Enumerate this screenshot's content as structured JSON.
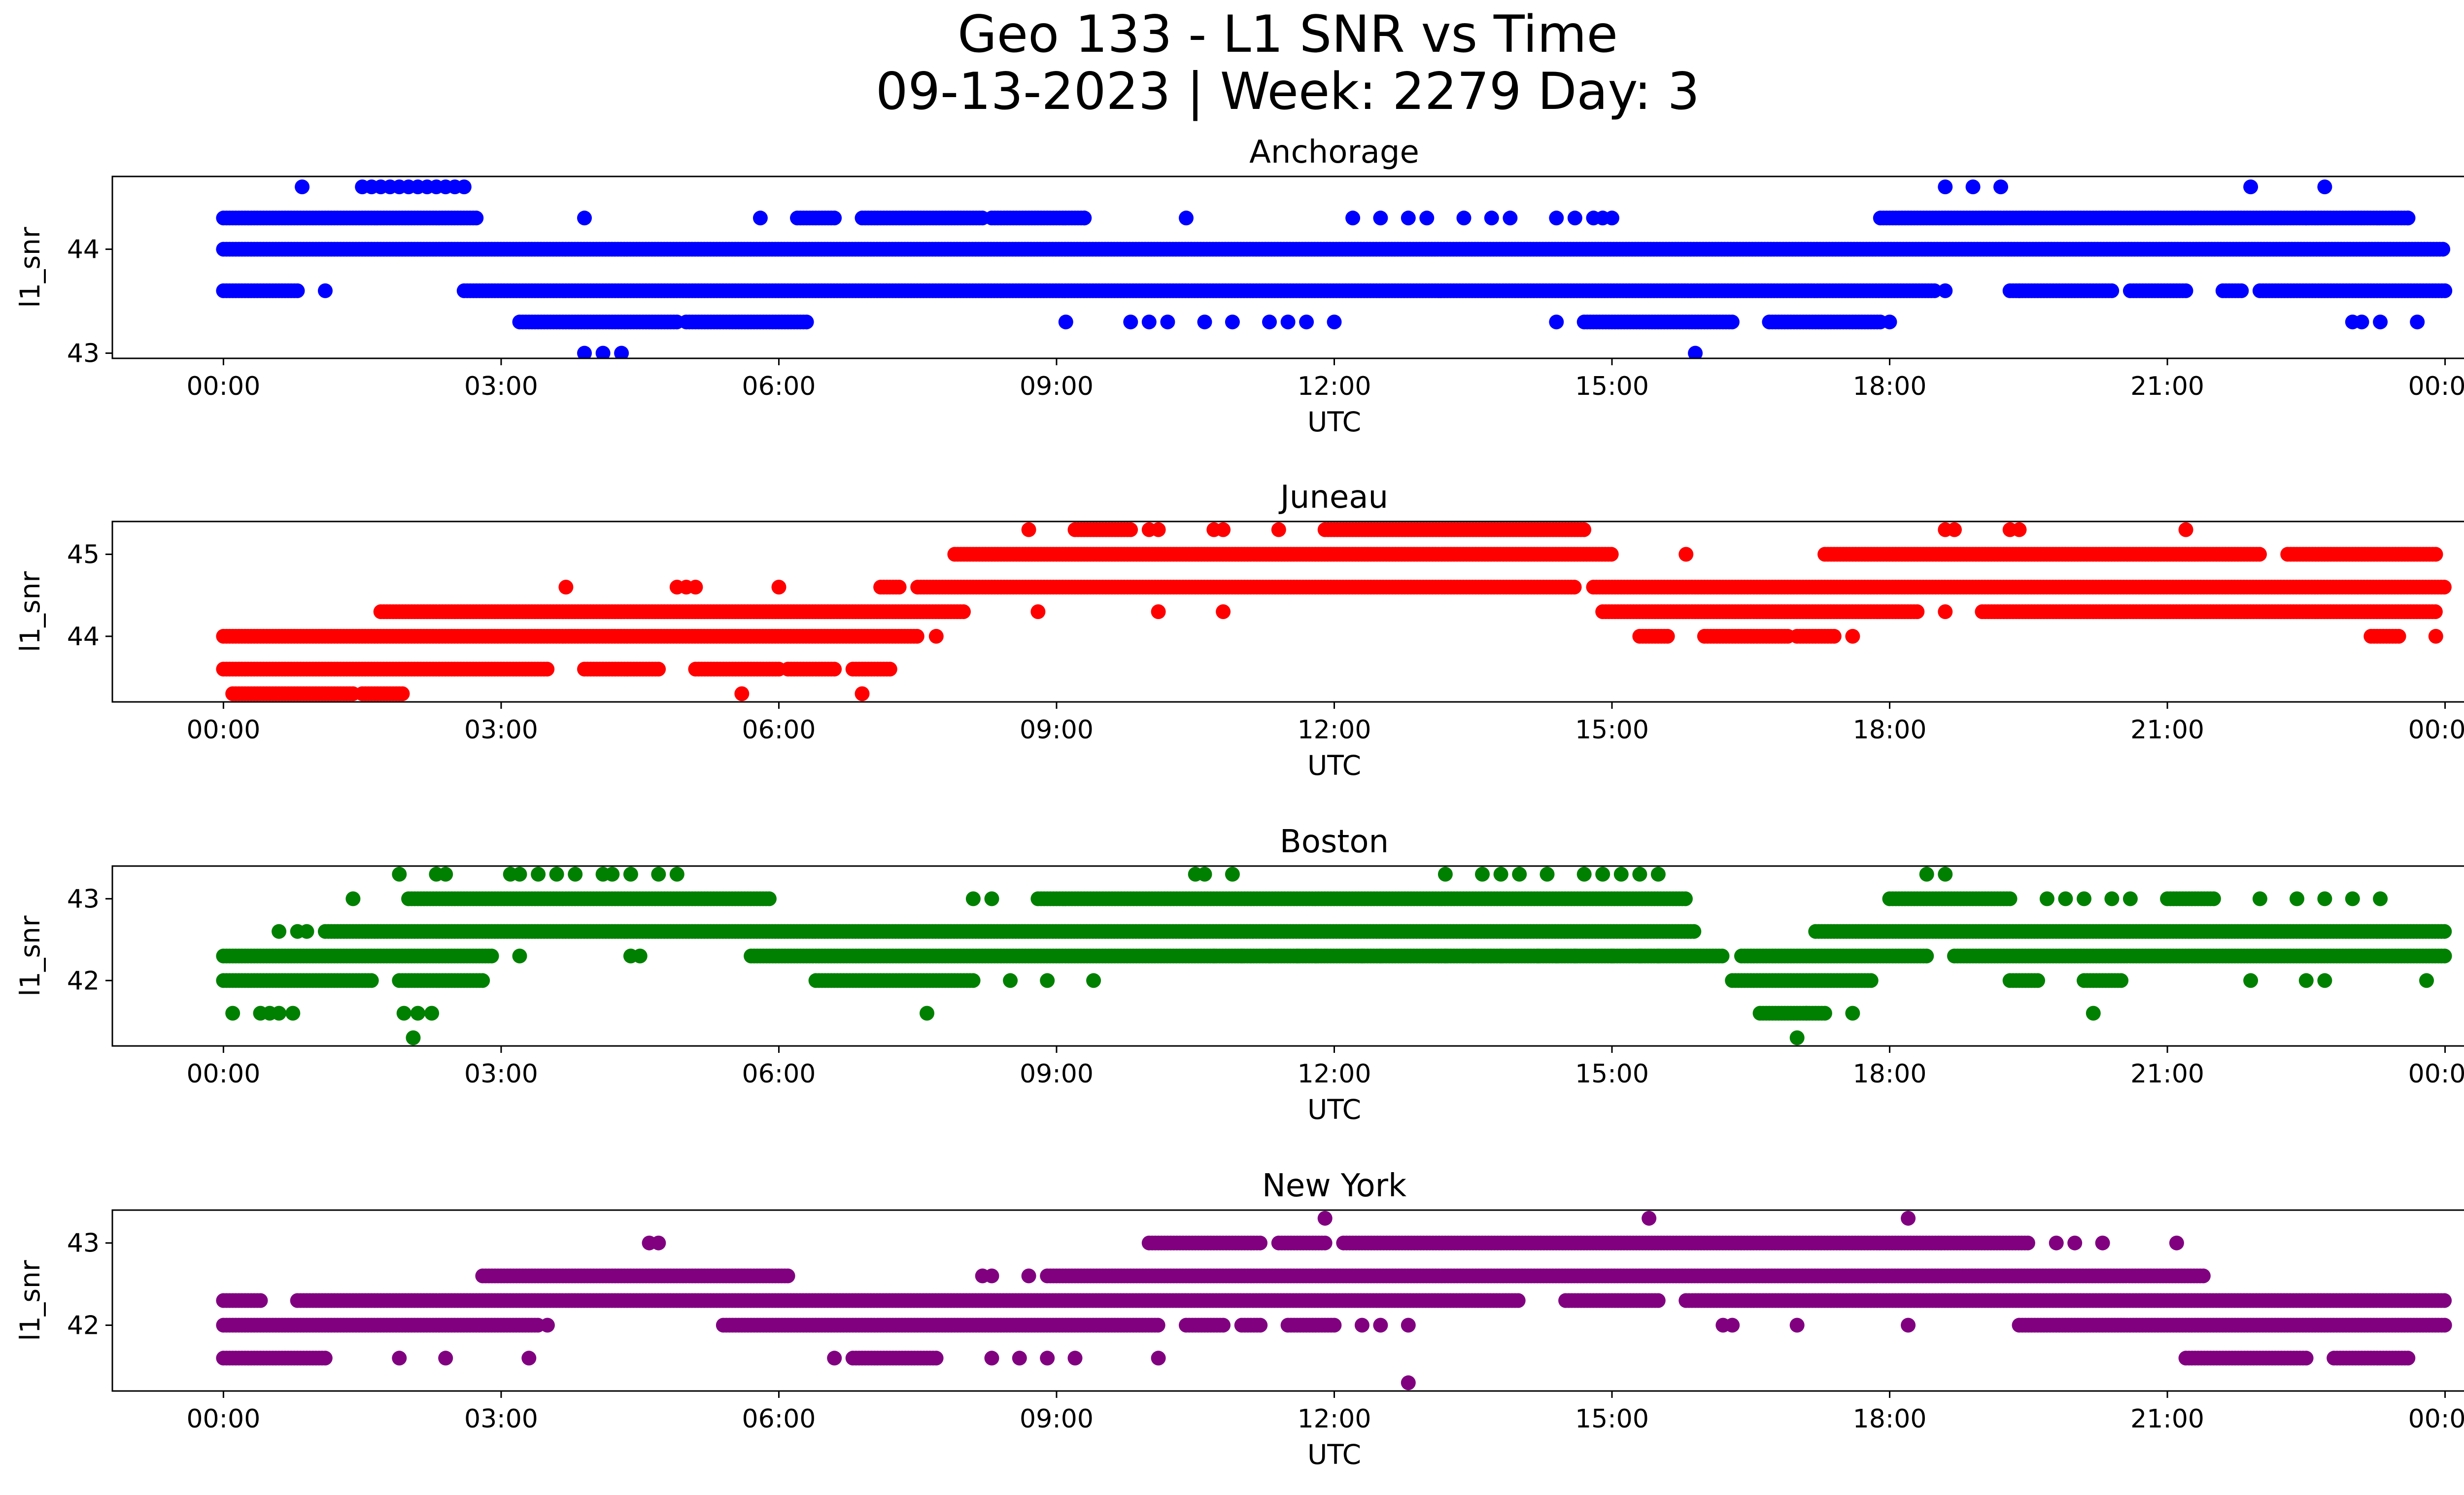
{
  "figure": {
    "title_line1": "Geo 133 - L1 SNR vs Time",
    "title_line2": "09-13-2023 | Week: 2279 Day: 3"
  },
  "chart_data": [
    {
      "type": "scatter",
      "title": "Anchorage",
      "color": "#0000ff",
      "xlabel": "UTC",
      "ylabel": "l1_snr",
      "xticks": [
        "00:00",
        "03:00",
        "06:00",
        "09:00",
        "12:00",
        "15:00",
        "18:00",
        "21:00",
        "00:00"
      ],
      "xlim_hours": [
        -1.2,
        25.2
      ],
      "yticks": [
        43,
        44
      ],
      "ylim": [
        42.95,
        44.7
      ],
      "series": [
        {
          "y": 44.0,
          "segments": [
            [
              0,
              24
            ]
          ],
          "dense": true
        },
        {
          "y": 44.3,
          "segments": [
            [
              0,
              2.75
            ],
            [
              6.2,
              6.6
            ],
            [
              6.9,
              8.2
            ],
            [
              8.3,
              9.3
            ],
            [
              17.9,
              23.6
            ]
          ],
          "dense": true
        },
        {
          "y": 44.3,
          "points": [
            3.9,
            5.8,
            9.3,
            10.4,
            12.2,
            12.5,
            12.8,
            13.0,
            13.4,
            13.7,
            13.9,
            14.4,
            14.6,
            14.8,
            14.9,
            15.0,
            22.5,
            23.6
          ]
        },
        {
          "y": 43.6,
          "segments": [
            [
              0,
              0.8
            ],
            [
              2.6,
              18.5
            ],
            [
              19.3,
              20.4
            ],
            [
              20.6,
              21.2
            ],
            [
              21.6,
              21.8
            ],
            [
              22.0,
              24.0
            ]
          ],
          "dense": true
        },
        {
          "y": 43.6,
          "points": [
            1.1,
            18.6,
            19.4
          ]
        },
        {
          "y": 44.6,
          "points": [
            0.85,
            1.5,
            1.6,
            1.7,
            1.8,
            1.9,
            2.0,
            2.1,
            2.2,
            2.3,
            2.4,
            2.5,
            2.6,
            18.6,
            18.9,
            19.2,
            21.9,
            22.7
          ]
        },
        {
          "y": 43.3,
          "segments": [
            [
              3.2,
              4.9
            ],
            [
              5.0,
              6.3
            ],
            [
              14.7,
              16.3
            ],
            [
              16.7,
              17.9
            ]
          ],
          "dense": true
        },
        {
          "y": 43.3,
          "points": [
            9.1,
            9.8,
            10.0,
            10.2,
            10.6,
            10.9,
            11.3,
            11.5,
            11.7,
            12.0,
            14.4,
            18.0,
            23.0,
            23.1,
            23.3,
            23.7
          ]
        },
        {
          "y": 43.0,
          "points": [
            3.9,
            4.1,
            4.3,
            15.9
          ]
        }
      ]
    },
    {
      "type": "scatter",
      "title": "Juneau",
      "color": "#ff0000",
      "xlabel": "UTC",
      "ylabel": "l1_snr",
      "xticks": [
        "00:00",
        "03:00",
        "06:00",
        "09:00",
        "12:00",
        "15:00",
        "18:00",
        "21:00",
        "00:00"
      ],
      "xlim_hours": [
        -1.2,
        25.2
      ],
      "yticks": [
        44,
        45
      ],
      "ylim": [
        43.2,
        45.4
      ],
      "series": [
        {
          "y": 44.0,
          "segments": [
            [
              0,
              7.5
            ],
            [
              15.3,
              15.6
            ],
            [
              16.0,
              16.9
            ],
            [
              17.0,
              17.4
            ],
            [
              23.2,
              23.5
            ]
          ],
          "dense": true
        },
        {
          "y": 44.0,
          "points": [
            7.7,
            17.6,
            23.9
          ]
        },
        {
          "y": 43.6,
          "segments": [
            [
              0,
              3.5
            ],
            [
              3.9,
              4.7
            ],
            [
              5.1,
              6.0
            ],
            [
              6.1,
              6.6
            ],
            [
              6.8,
              7.2
            ]
          ],
          "dense": true
        },
        {
          "y": 43.3,
          "segments": [
            [
              0.1,
              1.4
            ],
            [
              1.5,
              1.95
            ]
          ],
          "dense": true
        },
        {
          "y": 43.3,
          "points": [
            5.6,
            6.9
          ]
        },
        {
          "y": 44.3,
          "segments": [
            [
              1.7,
              8.0
            ],
            [
              14.9,
              18.3
            ],
            [
              19.0,
              23.9
            ]
          ],
          "dense": true
        },
        {
          "y": 44.3,
          "points": [
            8.8,
            10.1,
            10.8,
            18.6
          ]
        },
        {
          "y": 44.6,
          "segments": [
            [
              7.1,
              7.3
            ],
            [
              7.5,
              14.6
            ],
            [
              14.8,
              24.0
            ]
          ],
          "dense": true
        },
        {
          "y": 44.6,
          "points": [
            3.7,
            4.9,
            5.0,
            5.1,
            6.0
          ]
        },
        {
          "y": 45.0,
          "segments": [
            [
              7.9,
              15.0
            ],
            [
              17.3,
              22.0
            ],
            [
              22.3,
              23.9
            ]
          ],
          "dense": true
        },
        {
          "y": 45.0,
          "points": [
            15.8
          ]
        },
        {
          "y": 45.3,
          "segments": [
            [
              9.2,
              9.8
            ],
            [
              11.9,
              14.7
            ]
          ],
          "dense": true
        },
        {
          "y": 45.3,
          "points": [
            8.7,
            10.0,
            10.1,
            10.7,
            10.8,
            11.4,
            18.6,
            18.7,
            19.3,
            19.4,
            21.2
          ]
        }
      ]
    },
    {
      "type": "scatter",
      "title": "Boston",
      "color": "#008000",
      "xlabel": "UTC",
      "ylabel": "l1_snr",
      "xticks": [
        "00:00",
        "03:00",
        "06:00",
        "09:00",
        "12:00",
        "15:00",
        "18:00",
        "21:00",
        "00:00"
      ],
      "xlim_hours": [
        -1.2,
        25.2
      ],
      "yticks": [
        42,
        43
      ],
      "ylim": [
        41.2,
        43.4
      ],
      "series": [
        {
          "y": 42.3,
          "segments": [
            [
              0,
              2.9
            ],
            [
              5.7,
              16.2
            ],
            [
              16.4,
              18.4
            ],
            [
              18.7,
              24.0
            ]
          ],
          "dense": true
        },
        {
          "y": 42.3,
          "points": [
            3.2,
            4.4,
            4.5,
            10.7,
            11.0,
            11.3,
            11.6,
            11.8,
            12.3,
            12.5,
            13.2,
            13.5,
            13.8,
            14.2,
            14.4,
            14.6,
            15.0,
            15.3,
            15.5
          ]
        },
        {
          "y": 42.0,
          "segments": [
            [
              0,
              1.6
            ],
            [
              1.9,
              2.8
            ],
            [
              6.4,
              8.1
            ],
            [
              16.3,
              17.8
            ],
            [
              19.3,
              19.6
            ],
            [
              20.1,
              20.5
            ]
          ],
          "dense": true
        },
        {
          "y": 42.0,
          "points": [
            8.5,
            8.9,
            9.4,
            21.9,
            22.5,
            22.7,
            23.8
          ]
        },
        {
          "y": 41.6,
          "points": [
            0.1,
            0.4,
            0.5,
            0.6,
            0.75,
            1.95,
            2.1,
            2.25,
            7.6,
            17.1,
            17.6,
            20.2
          ]
        },
        {
          "y": 41.6,
          "segments": [
            [
              16.6,
              17.3
            ]
          ],
          "dense": true
        },
        {
          "y": 41.3,
          "points": [
            2.05,
            17.0
          ]
        },
        {
          "y": 42.6,
          "segments": [
            [
              1.1,
              15.9
            ],
            [
              17.2,
              24.0
            ]
          ],
          "dense": true
        },
        {
          "y": 42.6,
          "points": [
            0.6,
            0.8,
            0.9
          ]
        },
        {
          "y": 43.0,
          "segments": [
            [
              2.0,
              5.9
            ],
            [
              8.8,
              15.8
            ],
            [
              18.0,
              19.3
            ],
            [
              21.0,
              21.5
            ]
          ],
          "dense": true
        },
        {
          "y": 43.0,
          "points": [
            1.4,
            8.1,
            8.3,
            19.7,
            19.9,
            20.1,
            20.4,
            20.6,
            22.0,
            22.4,
            22.7,
            23.0,
            23.3
          ]
        },
        {
          "y": 43.3,
          "points": [
            1.9,
            2.3,
            2.4,
            3.1,
            3.2,
            3.4,
            3.6,
            3.8,
            4.1,
            4.2,
            4.4,
            4.7,
            4.9,
            10.5,
            10.6,
            10.9,
            13.2,
            13.6,
            13.8,
            14.0,
            14.3,
            14.7,
            14.9,
            15.1,
            15.3,
            15.5,
            18.4,
            18.6
          ]
        }
      ]
    },
    {
      "type": "scatter",
      "title": "New York",
      "color": "#800080",
      "xlabel": "UTC",
      "ylabel": "l1_snr",
      "xticks": [
        "00:00",
        "03:00",
        "06:00",
        "09:00",
        "12:00",
        "15:00",
        "18:00",
        "21:00",
        "00:00"
      ],
      "xlim_hours": [
        -1.2,
        25.2
      ],
      "yticks": [
        42,
        43
      ],
      "ylim": [
        41.2,
        43.4
      ],
      "series": [
        {
          "y": 42.0,
          "segments": [
            [
              0,
              3.4
            ],
            [
              5.4,
              10.1
            ],
            [
              10.4,
              10.8
            ],
            [
              11.0,
              11.2
            ],
            [
              11.5,
              12.0
            ],
            [
              19.4,
              24.0
            ]
          ],
          "dense": true
        },
        {
          "y": 42.0,
          "points": [
            3.5,
            12.3,
            12.5,
            12.8,
            16.2,
            16.3,
            17.0,
            18.2
          ]
        },
        {
          "y": 41.6,
          "segments": [
            [
              0,
              1.1
            ],
            [
              6.8,
              7.7
            ],
            [
              21.2,
              22.5
            ],
            [
              22.8,
              23.6
            ]
          ],
          "dense": true
        },
        {
          "y": 41.6,
          "points": [
            1.9,
            2.4,
            3.3,
            6.6,
            8.3,
            8.6,
            8.9,
            9.2,
            10.1
          ]
        },
        {
          "y": 41.3,
          "points": [
            12.8
          ]
        },
        {
          "y": 42.3,
          "segments": [
            [
              0,
              0.4
            ],
            [
              0.8,
              14.0
            ],
            [
              14.5,
              15.5
            ],
            [
              15.8,
              24.0
            ]
          ],
          "dense": true
        },
        {
          "y": 42.6,
          "segments": [
            [
              2.8,
              6.1
            ],
            [
              8.9,
              21.4
            ]
          ],
          "dense": true
        },
        {
          "y": 42.6,
          "points": [
            8.2,
            8.3,
            8.7
          ]
        },
        {
          "y": 43.0,
          "segments": [
            [
              10.0,
              11.2
            ],
            [
              11.4,
              11.9
            ],
            [
              12.1,
              19.5
            ]
          ],
          "dense": true
        },
        {
          "y": 43.0,
          "points": [
            4.6,
            4.7,
            19.8,
            20.0,
            20.3,
            21.1
          ]
        },
        {
          "y": 43.3,
          "points": [
            11.9,
            15.4,
            18.2
          ]
        }
      ]
    }
  ]
}
